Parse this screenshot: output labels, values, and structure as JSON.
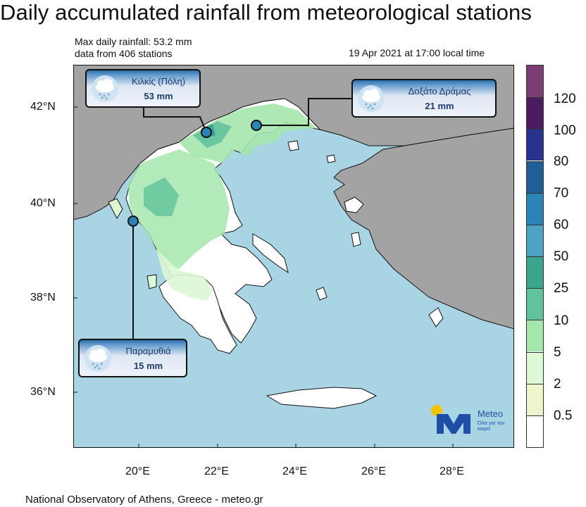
{
  "title": "Daily accumulated rainfall from meteorological stations",
  "max_rainfall": "Max daily rainfall: 53.2 mm",
  "station_count": "data from 406 stations",
  "timestamp": "19 Apr 2021 at 17:00 local time",
  "footer": "National Observatory of Athens, Greece - meteo.gr",
  "map": {
    "lat_labels": [
      "42°N",
      "40°N",
      "38°N",
      "36°N"
    ],
    "lon_labels": [
      "20°E",
      "22°E",
      "24°E",
      "26°E",
      "28°E"
    ],
    "colors": {
      "sea": "#a9d4e4",
      "land": "#a3a3a3",
      "greece_dry": "#ffffff",
      "coast": "#111111"
    }
  },
  "colorbar": {
    "labels": [
      "120",
      "100",
      "80",
      "70",
      "60",
      "50",
      "25",
      "10",
      "5",
      "2",
      "0.5"
    ],
    "colors": [
      "#7b3e74",
      "#4a1b5e",
      "#27338e",
      "#1f5f96",
      "#2b84b8",
      "#4ca3c4",
      "#3aa58d",
      "#60c39b",
      "#a5e6ad",
      "#dcf8d4",
      "#f0f4cc",
      "#ffffff"
    ]
  },
  "stations": [
    {
      "name": "Κιλκίς (Πόλη)",
      "value": "53 mm",
      "icon": "rain-cloud-icon"
    },
    {
      "name": "Δοξάτο Δράμας",
      "value": "21 mm",
      "icon": "rain-cloud-icon"
    },
    {
      "name": "Παραμυθιά",
      "value": "15 mm",
      "icon": "rain-cloud-icon"
    }
  ],
  "logo": {
    "name": "Meteo",
    "tagline": "Όλα για τον καιρό"
  }
}
